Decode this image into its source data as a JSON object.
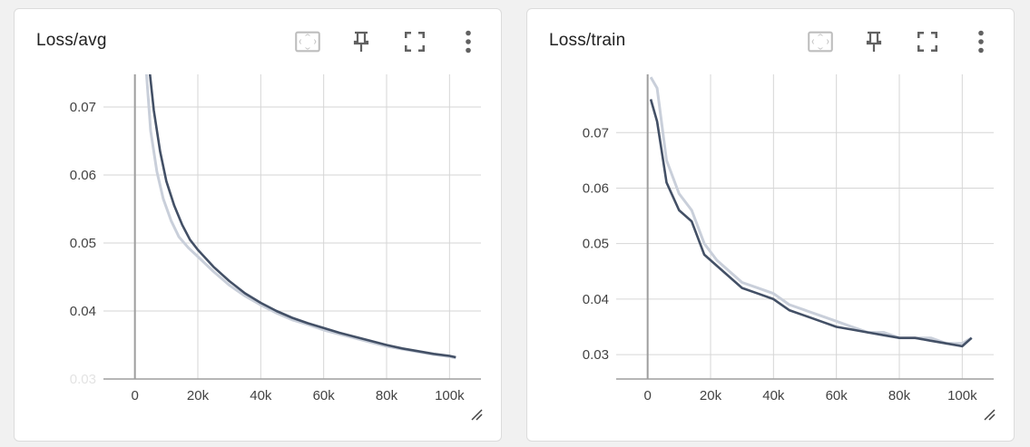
{
  "cards": [
    {
      "title": "Loss/avg",
      "buttons": {
        "fit": "fit-domain-icon",
        "pin": "pin-icon",
        "fullscreen": "fullscreen-icon",
        "menu": "more-vert-icon"
      }
    },
    {
      "title": "Loss/train",
      "buttons": {
        "fit": "fit-domain-icon",
        "pin": "pin-icon",
        "fullscreen": "fullscreen-icon",
        "menu": "more-vert-icon"
      }
    }
  ],
  "colors": {
    "line": "#435066",
    "line_raw": "#c9cfda",
    "grid": "#d6d6d6",
    "axis": "#9e9e9e",
    "icon": "#616161"
  },
  "chart_data": [
    {
      "type": "line",
      "title": "Loss/avg",
      "xlabel": "",
      "ylabel": "",
      "x_ticks": [
        "0",
        "20k",
        "40k",
        "60k",
        "80k",
        "100k"
      ],
      "y_ticks": [
        "0.03",
        "0.04",
        "0.05",
        "0.06",
        "0.07"
      ],
      "xlim": [
        -10000,
        110000
      ],
      "ylim": [
        0.03,
        0.0748
      ],
      "grid": true,
      "series": [
        {
          "role": "smoothed",
          "x": [
            4500,
            6000,
            8000,
            10000,
            12500,
            15000,
            17500,
            20000,
            25000,
            30000,
            35000,
            40000,
            45000,
            50000,
            55000,
            60000,
            65000,
            70000,
            75000,
            80000,
            85000,
            90000,
            95000,
            100000,
            102000
          ],
          "y": [
            0.076,
            0.0695,
            0.0635,
            0.0591,
            0.0555,
            0.0527,
            0.0505,
            0.049,
            0.0465,
            0.0444,
            0.0426,
            0.0412,
            0.04,
            0.039,
            0.0382,
            0.0375,
            0.0368,
            0.0362,
            0.0356,
            0.035,
            0.0345,
            0.0341,
            0.0337,
            0.0334,
            0.0332
          ]
        },
        {
          "role": "raw",
          "x": [
            3500,
            5000,
            7000,
            9000,
            11500,
            14000,
            17000,
            20000,
            25000,
            30000,
            35000,
            40000,
            45000,
            50000,
            55000,
            60000,
            65000,
            70000,
            75000,
            80000,
            85000,
            90000,
            95000,
            100000,
            102000
          ],
          "y": [
            0.076,
            0.0665,
            0.0605,
            0.0565,
            0.0533,
            0.0509,
            0.0493,
            0.048,
            0.0458,
            0.0438,
            0.0422,
            0.0409,
            0.0397,
            0.0387,
            0.038,
            0.0372,
            0.0366,
            0.036,
            0.0354,
            0.0348,
            0.0344,
            0.034,
            0.0336,
            0.0333,
            0.0331
          ]
        }
      ]
    },
    {
      "type": "line",
      "title": "Loss/train",
      "xlabel": "",
      "ylabel": "",
      "x_ticks": [
        "0",
        "20k",
        "40k",
        "60k",
        "80k",
        "100k"
      ],
      "y_ticks": [
        "0.03",
        "0.04",
        "0.05",
        "0.06",
        "0.07"
      ],
      "xlim": [
        -10000,
        110000
      ],
      "ylim": [
        0.0256,
        0.0805
      ],
      "grid": true,
      "series": [
        {
          "role": "smoothed",
          "x": [
            1000,
            3000,
            6000,
            10000,
            14000,
            18000,
            22000,
            26000,
            30000,
            35000,
            40000,
            45000,
            50000,
            55000,
            60000,
            65000,
            70000,
            75000,
            80000,
            85000,
            90000,
            95000,
            100000,
            103000
          ],
          "y": [
            0.076,
            0.072,
            0.061,
            0.056,
            0.054,
            0.048,
            0.046,
            0.044,
            0.042,
            0.041,
            0.04,
            0.038,
            0.037,
            0.036,
            0.035,
            0.0345,
            0.034,
            0.0335,
            0.033,
            0.033,
            0.0325,
            0.032,
            0.0315,
            0.033
          ]
        },
        {
          "role": "raw",
          "x": [
            1000,
            3000,
            6000,
            10000,
            14000,
            18000,
            22000,
            26000,
            30000,
            35000,
            40000,
            45000,
            50000,
            55000,
            60000,
            65000,
            70000,
            75000,
            80000,
            85000,
            90000,
            95000,
            100000,
            103000
          ],
          "y": [
            0.08,
            0.078,
            0.065,
            0.059,
            0.056,
            0.05,
            0.047,
            0.045,
            0.043,
            0.042,
            0.041,
            0.039,
            0.038,
            0.037,
            0.036,
            0.035,
            0.034,
            0.034,
            0.033,
            0.033,
            0.033,
            0.032,
            0.032,
            0.033
          ]
        }
      ]
    }
  ]
}
